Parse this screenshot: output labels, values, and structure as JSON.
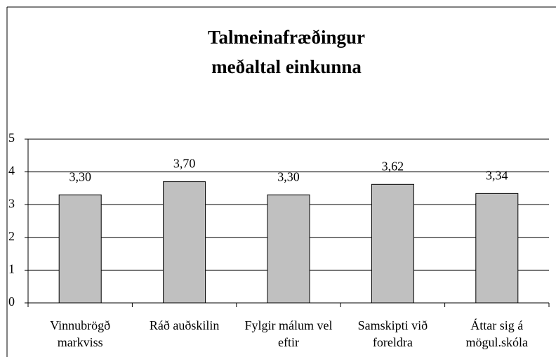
{
  "chart_data": {
    "type": "bar",
    "title": [
      "Talmeinafræðingur",
      "meðaltal einkunna"
    ],
    "categories": [
      "Vinnubrögð markviss",
      "Ráð auðskilin",
      "Fylgir málum vel eftir",
      "Samskipti við foreldra",
      "Áttar sig á mögul.skóla"
    ],
    "values": [
      3.3,
      3.7,
      3.3,
      3.62,
      3.34
    ],
    "value_labels": [
      "3,30",
      "3,70",
      "3,30",
      "3,62",
      "3,34"
    ],
    "color": "#c0c0c0",
    "ylim": [
      0,
      5
    ],
    "yticks": [
      0,
      1,
      2,
      3,
      4,
      5
    ],
    "grid": true
  }
}
